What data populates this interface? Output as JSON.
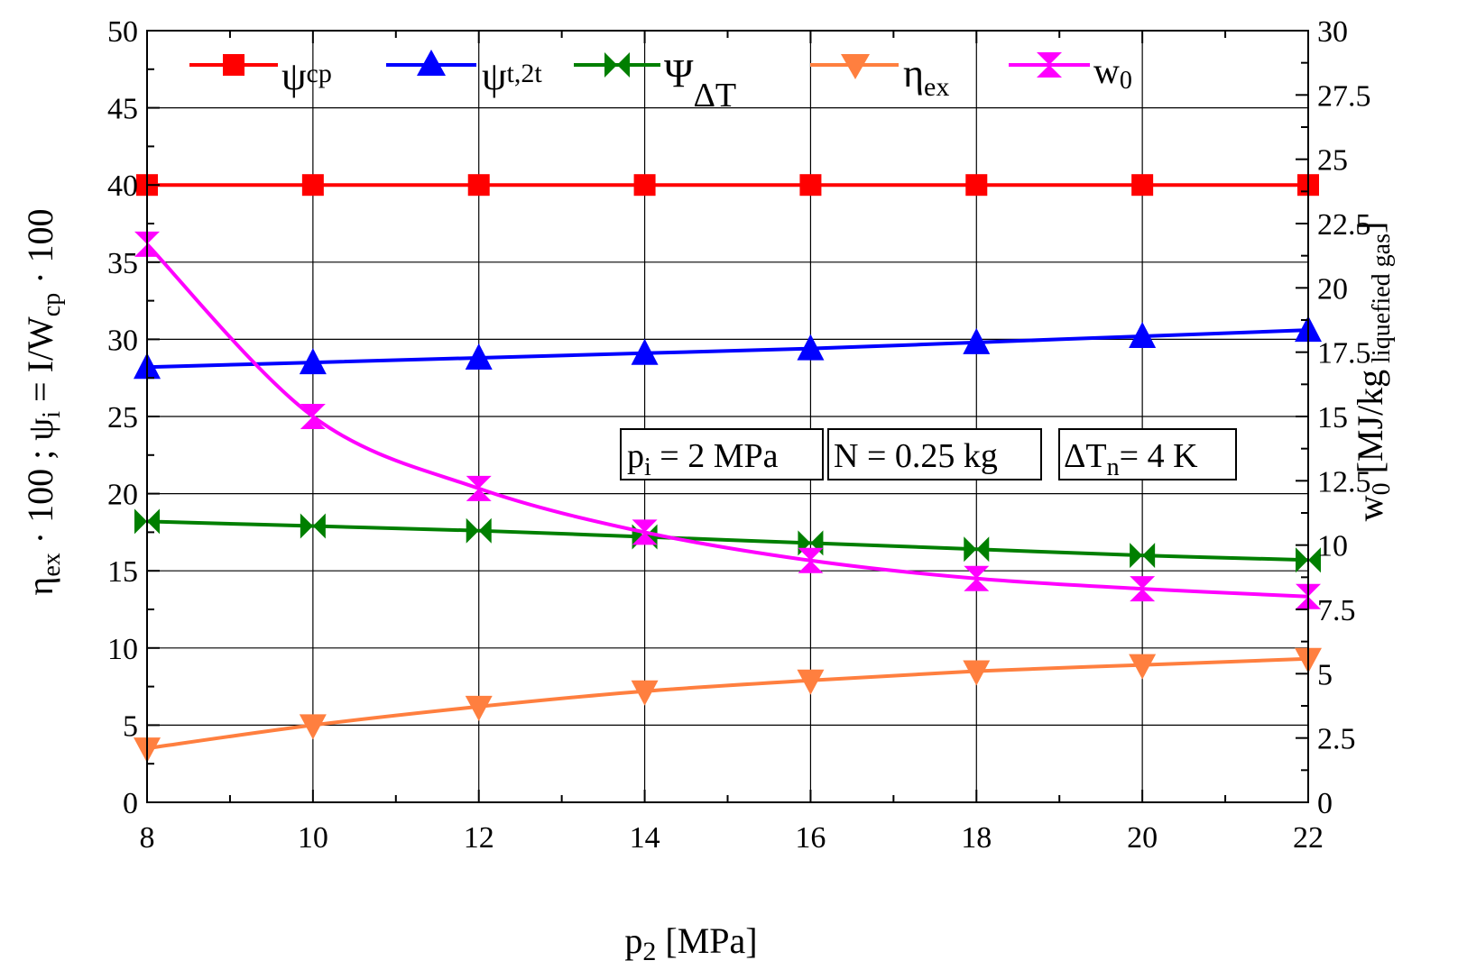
{
  "chart_data": {
    "type": "line",
    "x": [
      8,
      10,
      12,
      14,
      16,
      18,
      20,
      22
    ],
    "xlim": [
      8,
      22
    ],
    "x_ticks": [
      "8",
      "10",
      "12",
      "14",
      "16",
      "18",
      "20",
      "22"
    ],
    "xlabel": {
      "main": "p",
      "sub": "2",
      "rest": " [MPa]"
    },
    "y_left": {
      "lim": [
        0,
        50
      ],
      "ticks": [
        "0",
        "5",
        "10",
        "15",
        "20",
        "25",
        "30",
        "35",
        "40",
        "45",
        "50"
      ],
      "label": {
        "a": "η",
        "a_sub": "ex",
        "b": " · 100 ;  ψ",
        "b_sub": "i",
        "c": "  =  I/W",
        "c_sub": "cp",
        "d": " · 100"
      }
    },
    "y_right": {
      "lim": [
        0,
        30
      ],
      "ticks": [
        "0",
        "2.5",
        "5",
        "7.5",
        "10",
        "12.5",
        "15",
        "17.5",
        "20",
        "22.5",
        "25",
        "27.5",
        "30"
      ],
      "label": {
        "main": "w",
        "main_sub": "0",
        "mid": " [MJ/kg",
        "mid_sub": " liquefied gas",
        "end": "]"
      }
    },
    "grid": true,
    "legend_position": "top",
    "series": [
      {
        "key": "psi_cp",
        "name": "ψ",
        "name_sub": "cp",
        "axis": "left",
        "color": "#ff0000",
        "marker": "square",
        "values": [
          40,
          40,
          40,
          40,
          40,
          40,
          40,
          40
        ]
      },
      {
        "key": "psi_t2t",
        "name": "ψ",
        "name_sub": "t,2t",
        "axis": "left",
        "color": "#0000ff",
        "marker": "triangle-up",
        "values": [
          28.2,
          28.5,
          28.8,
          29.1,
          29.4,
          29.8,
          30.2,
          30.6
        ]
      },
      {
        "key": "psi_dT",
        "name": "Ψ",
        "name_sub": "ΔT",
        "axis": "left",
        "color": "#007f00",
        "marker": "bowtie",
        "values": [
          18.2,
          17.9,
          17.6,
          17.2,
          16.8,
          16.4,
          16.0,
          15.7
        ]
      },
      {
        "key": "eta_ex",
        "name": "η",
        "name_sub": "ex",
        "axis": "left",
        "color": "#ff7f3f",
        "marker": "triangle-down",
        "values": [
          3.5,
          5.0,
          6.2,
          7.2,
          7.9,
          8.5,
          8.9,
          9.3
        ]
      },
      {
        "key": "w0",
        "name": "w",
        "name_sub": "0",
        "axis": "right",
        "color": "#ff00ff",
        "marker": "hourglass",
        "values": [
          21.7,
          15.0,
          12.2,
          10.5,
          9.4,
          8.7,
          8.3,
          8.0
        ]
      }
    ],
    "annotations": [
      {
        "main": "p",
        "sub": "i",
        "rest": " = 2 MPa"
      },
      {
        "main": "N = 0.25 kg",
        "sub": "",
        "rest": ""
      },
      {
        "main": "ΔT",
        "sub": "n",
        "rest": "= 4 K"
      }
    ]
  }
}
